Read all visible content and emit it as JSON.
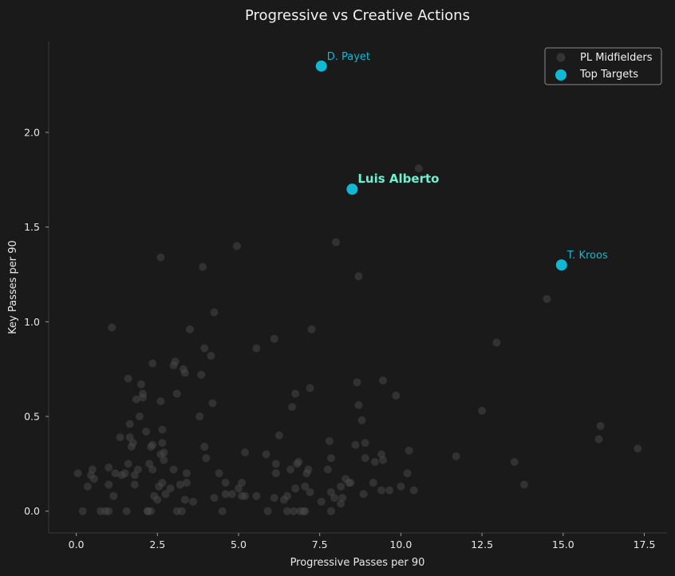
{
  "chart_data": {
    "type": "scatter",
    "title": "Progressive vs Creative Actions",
    "xlabel": "Progressive Passes per 90",
    "ylabel": "Key Passes per 90",
    "xlim": [
      -0.85,
      18.2
    ],
    "ylim": [
      -0.115,
      2.48
    ],
    "x_ticks": [
      0.0,
      2.5,
      5.0,
      7.5,
      10.0,
      12.5,
      15.0,
      17.5
    ],
    "x_tick_labels": [
      "0.0",
      "2.5",
      "5.0",
      "7.5",
      "10.0",
      "12.5",
      "15.0",
      "17.5"
    ],
    "y_ticks": [
      0.0,
      0.5,
      1.0,
      1.5,
      2.0
    ],
    "y_tick_labels": [
      "0.0",
      "0.5",
      "1.0",
      "1.5",
      "2.0"
    ],
    "grid": false,
    "legend_position": "top-right",
    "colors": {
      "background": "#1a1a1a",
      "spine": "#3a3a3a",
      "pool": "#4a4a4a",
      "highlight": "#0fb8d3",
      "featured_label": "#6ff0d0"
    },
    "series": [
      {
        "name": "PL Midfielders",
        "points": [
          [
            0.05,
            0.2
          ],
          [
            0.2,
            0.0
          ],
          [
            0.35,
            0.13
          ],
          [
            0.45,
            0.19
          ],
          [
            0.5,
            0.22
          ],
          [
            0.55,
            0.17
          ],
          [
            0.75,
            0.0
          ],
          [
            0.9,
            0.0
          ],
          [
            1.0,
            0.0
          ],
          [
            1.0,
            0.23
          ],
          [
            1.0,
            0.14
          ],
          [
            1.1,
            0.97
          ],
          [
            1.15,
            0.08
          ],
          [
            1.2,
            0.2
          ],
          [
            1.35,
            0.39
          ],
          [
            1.4,
            0.19
          ],
          [
            1.5,
            0.2
          ],
          [
            1.55,
            0.0
          ],
          [
            1.6,
            0.25
          ],
          [
            1.6,
            0.7
          ],
          [
            1.65,
            0.39
          ],
          [
            1.65,
            0.46
          ],
          [
            1.7,
            0.34
          ],
          [
            1.75,
            0.36
          ],
          [
            1.8,
            0.14
          ],
          [
            1.8,
            0.19
          ],
          [
            1.85,
            0.59
          ],
          [
            1.9,
            0.22
          ],
          [
            1.95,
            0.5
          ],
          [
            2.0,
            0.67
          ],
          [
            2.05,
            0.6
          ],
          [
            2.05,
            0.62
          ],
          [
            2.15,
            0.42
          ],
          [
            2.2,
            0.0
          ],
          [
            2.2,
            0.0
          ],
          [
            2.25,
            0.25
          ],
          [
            2.3,
            0.34
          ],
          [
            2.35,
            0.35
          ],
          [
            2.35,
            0.78
          ],
          [
            2.3,
            0.0
          ],
          [
            2.35,
            0.22
          ],
          [
            2.4,
            0.08
          ],
          [
            2.5,
            0.06
          ],
          [
            2.55,
            0.13
          ],
          [
            2.6,
            0.58
          ],
          [
            2.6,
            1.34
          ],
          [
            2.6,
            0.3
          ],
          [
            2.65,
            0.15
          ],
          [
            2.65,
            0.36
          ],
          [
            2.65,
            0.43
          ],
          [
            2.7,
            0.27
          ],
          [
            2.7,
            0.31
          ],
          [
            2.75,
            0.09
          ],
          [
            2.9,
            0.12
          ],
          [
            3.0,
            0.77
          ],
          [
            3.0,
            0.22
          ],
          [
            3.05,
            0.79
          ],
          [
            3.1,
            0.62
          ],
          [
            3.1,
            0.0
          ],
          [
            3.2,
            0.14
          ],
          [
            3.25,
            0.0
          ],
          [
            3.3,
            0.75
          ],
          [
            3.35,
            0.73
          ],
          [
            3.35,
            0.06
          ],
          [
            3.4,
            0.2
          ],
          [
            3.4,
            0.15
          ],
          [
            3.5,
            0.96
          ],
          [
            3.6,
            0.05
          ],
          [
            3.8,
            0.5
          ],
          [
            3.85,
            0.72
          ],
          [
            3.9,
            1.29
          ],
          [
            3.95,
            0.86
          ],
          [
            3.95,
            0.34
          ],
          [
            4.0,
            0.28
          ],
          [
            4.15,
            0.82
          ],
          [
            4.2,
            0.57
          ],
          [
            4.25,
            0.07
          ],
          [
            4.25,
            1.05
          ],
          [
            4.4,
            0.2
          ],
          [
            4.5,
            0.0
          ],
          [
            4.6,
            0.15
          ],
          [
            4.6,
            0.09
          ],
          [
            4.8,
            0.09
          ],
          [
            4.95,
            1.4
          ],
          [
            5.0,
            0.12
          ],
          [
            5.1,
            0.15
          ],
          [
            5.1,
            0.08
          ],
          [
            5.2,
            0.08
          ],
          [
            5.2,
            0.31
          ],
          [
            5.55,
            0.86
          ],
          [
            5.55,
            0.08
          ],
          [
            5.85,
            0.3
          ],
          [
            5.9,
            0.0
          ],
          [
            6.1,
            0.07
          ],
          [
            6.1,
            0.91
          ],
          [
            6.15,
            0.2
          ],
          [
            6.15,
            0.25
          ],
          [
            6.25,
            0.4
          ],
          [
            6.4,
            0.06
          ],
          [
            6.5,
            0.0
          ],
          [
            6.5,
            0.08
          ],
          [
            6.6,
            0.22
          ],
          [
            6.65,
            0.55
          ],
          [
            6.7,
            0.0
          ],
          [
            6.75,
            0.12
          ],
          [
            6.75,
            0.62
          ],
          [
            6.8,
            0.25
          ],
          [
            6.85,
            0.26
          ],
          [
            6.9,
            0.0
          ],
          [
            7.0,
            0.0
          ],
          [
            7.05,
            0.0
          ],
          [
            7.05,
            0.13
          ],
          [
            7.1,
            0.2
          ],
          [
            7.15,
            0.22
          ],
          [
            7.2,
            0.1
          ],
          [
            7.2,
            0.65
          ],
          [
            7.25,
            0.96
          ],
          [
            7.55,
            0.05
          ],
          [
            7.75,
            0.22
          ],
          [
            7.8,
            0.37
          ],
          [
            7.85,
            0.0
          ],
          [
            7.85,
            0.1
          ],
          [
            7.85,
            0.28
          ],
          [
            7.95,
            0.07
          ],
          [
            8.0,
            1.42
          ],
          [
            8.15,
            0.04
          ],
          [
            8.15,
            0.13
          ],
          [
            8.2,
            0.07
          ],
          [
            8.3,
            0.17
          ],
          [
            8.4,
            0.15
          ],
          [
            8.45,
            0.15
          ],
          [
            8.6,
            0.35
          ],
          [
            8.65,
            0.68
          ],
          [
            8.7,
            0.56
          ],
          [
            8.7,
            1.24
          ],
          [
            8.8,
            0.48
          ],
          [
            8.85,
            0.09
          ],
          [
            8.9,
            0.36
          ],
          [
            8.9,
            0.28
          ],
          [
            9.15,
            0.15
          ],
          [
            9.2,
            0.26
          ],
          [
            9.4,
            0.3
          ],
          [
            9.4,
            0.11
          ],
          [
            9.45,
            0.69
          ],
          [
            9.45,
            0.27
          ],
          [
            9.65,
            0.11
          ],
          [
            9.85,
            0.61
          ],
          [
            10.0,
            0.13
          ],
          [
            10.2,
            0.2
          ],
          [
            10.25,
            0.32
          ],
          [
            10.4,
            0.11
          ],
          [
            10.55,
            1.81
          ],
          [
            11.7,
            0.29
          ],
          [
            12.5,
            0.53
          ],
          [
            12.95,
            0.89
          ],
          [
            13.5,
            0.26
          ],
          [
            13.8,
            0.14
          ],
          [
            14.5,
            1.12
          ],
          [
            16.1,
            0.38
          ],
          [
            16.15,
            0.45
          ],
          [
            17.3,
            0.33
          ]
        ]
      },
      {
        "name": "Top Targets",
        "points": [
          {
            "x": 7.55,
            "y": 2.35,
            "label": "D. Payet",
            "featured": false
          },
          {
            "x": 8.5,
            "y": 1.7,
            "label": "Luis Alberto",
            "featured": true
          },
          {
            "x": 14.95,
            "y": 1.3,
            "label": "T. Kroos",
            "featured": false
          }
        ]
      }
    ]
  }
}
